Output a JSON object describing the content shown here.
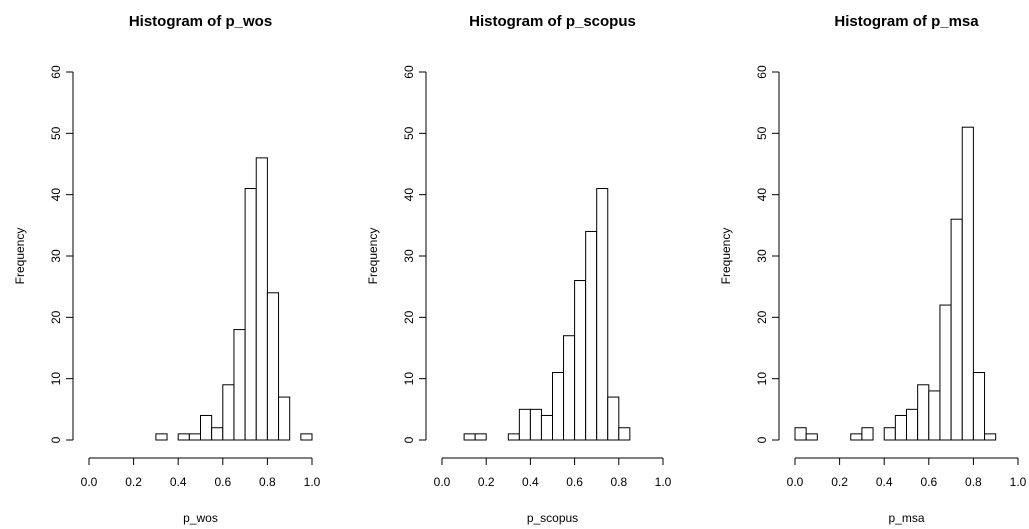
{
  "chart_data": [
    {
      "type": "bar",
      "title": "Histogram of p_wos",
      "xlabel": "p_wos",
      "ylabel": "Frequency",
      "xlim": [
        0,
        1
      ],
      "ylim": [
        0,
        60
      ],
      "xticks": [
        "0.0",
        "0.2",
        "0.4",
        "0.6",
        "0.8",
        "1.0"
      ],
      "yticks": [
        "0",
        "10",
        "20",
        "30",
        "40",
        "50",
        "60"
      ],
      "bin_width": 0.05,
      "bins": [
        0.0,
        0.05,
        0.1,
        0.15,
        0.2,
        0.25,
        0.3,
        0.35,
        0.4,
        0.45,
        0.5,
        0.55,
        0.6,
        0.65,
        0.7,
        0.75,
        0.8,
        0.85,
        0.9,
        0.95
      ],
      "values": [
        0,
        0,
        0,
        0,
        0,
        0,
        1,
        0,
        1,
        1,
        4,
        2,
        9,
        18,
        41,
        46,
        24,
        7,
        0,
        1
      ]
    },
    {
      "type": "bar",
      "title": "Histogram of p_scopus",
      "xlabel": "p_scopus",
      "ylabel": "Frequency",
      "xlim": [
        0,
        1
      ],
      "ylim": [
        0,
        60
      ],
      "xticks": [
        "0.0",
        "0.2",
        "0.4",
        "0.6",
        "0.8",
        "1.0"
      ],
      "yticks": [
        "0",
        "10",
        "20",
        "30",
        "40",
        "50",
        "60"
      ],
      "bin_width": 0.05,
      "bins": [
        0.0,
        0.05,
        0.1,
        0.15,
        0.2,
        0.25,
        0.3,
        0.35,
        0.4,
        0.45,
        0.5,
        0.55,
        0.6,
        0.65,
        0.7,
        0.75,
        0.8,
        0.85,
        0.9,
        0.95
      ],
      "values": [
        0,
        0,
        1,
        1,
        0,
        0,
        1,
        5,
        5,
        4,
        11,
        17,
        26,
        34,
        41,
        7,
        2,
        0,
        0,
        0
      ]
    },
    {
      "type": "bar",
      "title": "Histogram of p_msa",
      "xlabel": "p_msa",
      "ylabel": "Frequency",
      "xlim": [
        0,
        1
      ],
      "ylim": [
        0,
        60
      ],
      "xticks": [
        "0.0",
        "0.2",
        "0.4",
        "0.6",
        "0.8",
        "1.0"
      ],
      "yticks": [
        "0",
        "10",
        "20",
        "30",
        "40",
        "50",
        "60"
      ],
      "bin_width": 0.05,
      "bins": [
        0.0,
        0.05,
        0.1,
        0.15,
        0.2,
        0.25,
        0.3,
        0.35,
        0.4,
        0.45,
        0.5,
        0.55,
        0.6,
        0.65,
        0.7,
        0.75,
        0.8,
        0.85,
        0.9,
        0.95
      ],
      "values": [
        2,
        1,
        0,
        0,
        0,
        1,
        2,
        0,
        2,
        4,
        5,
        9,
        8,
        22,
        36,
        51,
        11,
        1,
        0,
        0
      ]
    }
  ]
}
